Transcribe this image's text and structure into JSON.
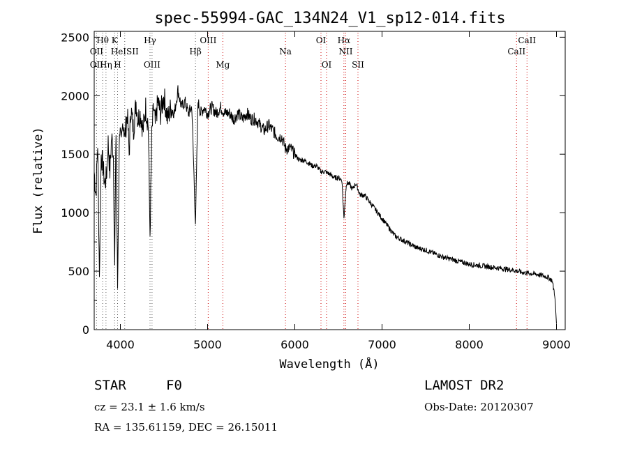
{
  "chart_data": {
    "type": "line",
    "title": "spec-55994-GAC_134N24_V1_sp12-014.fits",
    "xlabel": "Wavelength (Å)",
    "ylabel": "Flux (relative)",
    "xlim": [
      3700,
      9100
    ],
    "ylim": [
      0,
      2550
    ],
    "xticks": [
      4000,
      5000,
      6000,
      7000,
      8000,
      9000
    ],
    "yticks": [
      0,
      500,
      1000,
      1500,
      2000,
      2500
    ],
    "series": [
      {
        "name": "flux",
        "x": [
          3700,
          3720,
          3740,
          3760,
          3780,
          3800,
          3820,
          3840,
          3860,
          3880,
          3900,
          3920,
          3935,
          3950,
          3968,
          3990,
          4010,
          4030,
          4050,
          4080,
          4101,
          4120,
          4150,
          4180,
          4200,
          4230,
          4260,
          4290,
          4320,
          4340,
          4360,
          4380,
          4400,
          4430,
          4460,
          4500,
          4540,
          4580,
          4620,
          4660,
          4700,
          4740,
          4780,
          4820,
          4861,
          4890,
          4920,
          4960,
          5000,
          5050,
          5100,
          5150,
          5200,
          5250,
          5300,
          5350,
          5400,
          5450,
          5500,
          5550,
          5600,
          5650,
          5700,
          5750,
          5800,
          5850,
          5890,
          5950,
          6000,
          6050,
          6100,
          6150,
          6200,
          6250,
          6300,
          6350,
          6400,
          6450,
          6500,
          6540,
          6563,
          6590,
          6620,
          6660,
          6700,
          6750,
          6800,
          6850,
          6900,
          6950,
          7000,
          7050,
          7100,
          7150,
          7200,
          7250,
          7300,
          7350,
          7400,
          7450,
          7500,
          7600,
          7700,
          7800,
          7900,
          8000,
          8100,
          8200,
          8300,
          8400,
          8500,
          8600,
          8700,
          8800,
          8850,
          8900,
          8950,
          8980,
          9000
        ],
        "y": [
          1350,
          1150,
          1600,
          450,
          1500,
          1400,
          1250,
          1300,
          1600,
          1350,
          1650,
          1500,
          550,
          1700,
          350,
          1750,
          1550,
          1800,
          1650,
          1850,
          1500,
          1900,
          1700,
          1950,
          1800,
          1850,
          1700,
          1900,
          1750,
          800,
          1650,
          1900,
          1750,
          1950,
          1850,
          2000,
          1800,
          1900,
          1850,
          2050,
          1900,
          1950,
          1850,
          1900,
          900,
          1950,
          1850,
          1900,
          1850,
          1900,
          1850,
          1900,
          1850,
          1850,
          1800,
          1850,
          1800,
          1850,
          1800,
          1800,
          1750,
          1700,
          1750,
          1700,
          1650,
          1650,
          1550,
          1550,
          1500,
          1450,
          1450,
          1430,
          1400,
          1400,
          1350,
          1350,
          1330,
          1300,
          1300,
          1280,
          950,
          1250,
          1250,
          1200,
          1250,
          1150,
          1150,
          1100,
          1050,
          1000,
          950,
          900,
          850,
          800,
          780,
          760,
          740,
          720,
          700,
          690,
          680,
          650,
          620,
          600,
          580,
          560,
          550,
          540,
          530,
          520,
          510,
          490,
          480,
          470,
          460,
          450,
          420,
          300,
          50
        ]
      }
    ],
    "line_markers": [
      {
        "label": "Hθ",
        "wave": 3797,
        "row": 1
      },
      {
        "label": "K",
        "wave": 3934,
        "row": 1
      },
      {
        "label": "Hγ",
        "wave": 4340,
        "row": 1
      },
      {
        "label": "OIII",
        "wave": 5007,
        "row": 1
      },
      {
        "label": "OI",
        "wave": 6300,
        "row": 1
      },
      {
        "label": "Hα",
        "wave": 6563,
        "row": 1
      },
      {
        "label": "CaII",
        "wave": 8662,
        "row": 1
      },
      {
        "label": "OII",
        "wave": 3727,
        "row": 2
      },
      {
        "label": "HeISII",
        "wave": 4050,
        "row": 2
      },
      {
        "label": "Hβ",
        "wave": 4861,
        "row": 2
      },
      {
        "label": "Na",
        "wave": 5893,
        "row": 2
      },
      {
        "label": "NII",
        "wave": 6584,
        "row": 2
      },
      {
        "label": "CaII",
        "wave": 8542,
        "row": 2
      },
      {
        "label": "OII",
        "wave": 3727,
        "row": 3
      },
      {
        "label": "Hη",
        "wave": 3835,
        "row": 3
      },
      {
        "label": "H",
        "wave": 3968,
        "row": 3
      },
      {
        "label": "OIII",
        "wave": 4363,
        "row": 3
      },
      {
        "label": "Mg",
        "wave": 5175,
        "row": 3
      },
      {
        "label": "OI",
        "wave": 6364,
        "row": 3
      },
      {
        "label": "SII",
        "wave": 6724,
        "row": 3
      }
    ]
  },
  "info": {
    "class": "STAR",
    "subclass": "F0",
    "survey": "LAMOST DR2",
    "cz": "cz = 23.1 ± 1.6 km/s",
    "obs_date": "Obs-Date: 20120307",
    "radec": "RA = 135.61159, DEC =  26.15011"
  },
  "colors": {
    "spectrum": "#000000",
    "line_marker": "#cc0000",
    "marker_dots": "#555555"
  }
}
